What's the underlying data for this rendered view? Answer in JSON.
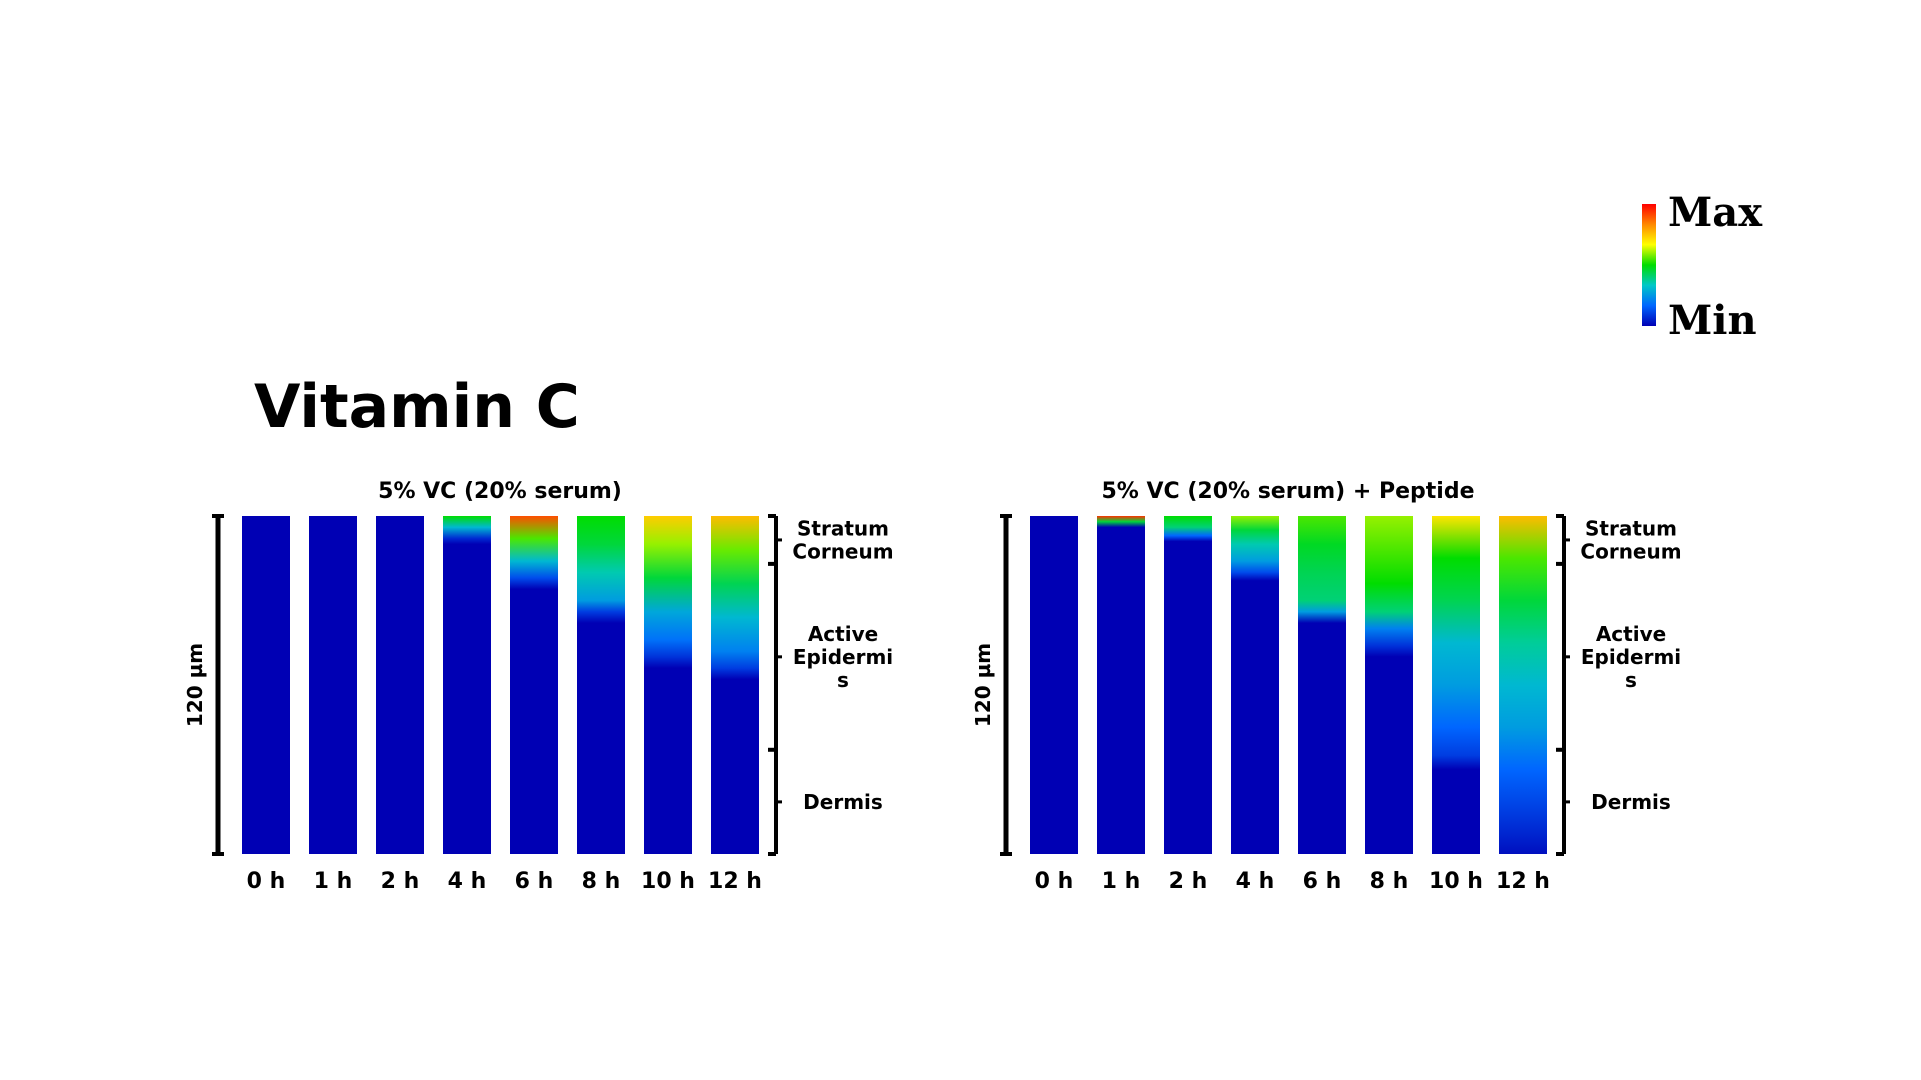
{
  "figure": {
    "title": "Vitamin C"
  },
  "legend": {
    "max_label": "Max",
    "min_label": "Min",
    "colors": [
      "#ff0000",
      "#ff8800",
      "#ffff00",
      "#00dd00",
      "#00c8c8",
      "#0066ff",
      "#0000b4"
    ]
  },
  "chart_data": [
    {
      "type": "heatmap",
      "title": "5% VC (20% serum)",
      "categories": [
        "0 h",
        "1 h",
        "2 h",
        "4 h",
        "6 h",
        "8 h",
        "10 h",
        "12 h"
      ],
      "ylabel": "120 µm",
      "layers": [
        "Stratum Corneum",
        "Active Epidermis",
        "Dermis"
      ],
      "layer_label_lines": [
        [
          "Stratum",
          "Corneum"
        ],
        [
          "Active",
          "Epidermi",
          "s"
        ],
        [
          "Dermis"
        ]
      ],
      "layer_boundaries_um": [
        17,
        83
      ],
      "ylim": [
        0,
        120
      ],
      "scale": "relative intensity 0 (Min) to 1 (Max)",
      "penetration_depth_um": [
        0,
        0,
        0,
        8,
        22,
        33,
        48,
        54
      ],
      "surface_intensity": [
        0,
        0,
        0,
        0.55,
        0.92,
        0.55,
        0.78,
        0.8
      ],
      "profiles": [
        [
          [
            0,
            0
          ]
        ],
        [
          [
            0,
            0
          ]
        ],
        [
          [
            0,
            0
          ]
        ],
        [
          [
            0,
            0.55
          ],
          [
            4,
            0.35
          ],
          [
            8,
            0.08
          ],
          [
            10,
            0
          ]
        ],
        [
          [
            0,
            0.92
          ],
          [
            8,
            0.6
          ],
          [
            16,
            0.35
          ],
          [
            22,
            0.15
          ],
          [
            26,
            0
          ]
        ],
        [
          [
            0,
            0.55
          ],
          [
            10,
            0.5
          ],
          [
            20,
            0.4
          ],
          [
            30,
            0.3
          ],
          [
            34,
            0.12
          ],
          [
            38,
            0
          ]
        ],
        [
          [
            0,
            0.78
          ],
          [
            10,
            0.65
          ],
          [
            22,
            0.5
          ],
          [
            34,
            0.32
          ],
          [
            44,
            0.22
          ],
          [
            50,
            0.1
          ],
          [
            54,
            0
          ]
        ],
        [
          [
            0,
            0.8
          ],
          [
            12,
            0.62
          ],
          [
            24,
            0.48
          ],
          [
            36,
            0.35
          ],
          [
            48,
            0.25
          ],
          [
            54,
            0.12
          ],
          [
            58,
            0
          ]
        ]
      ]
    },
    {
      "type": "heatmap",
      "title": "5% VC (20% serum) + Peptide",
      "categories": [
        "0 h",
        "1 h",
        "2 h",
        "4 h",
        "6 h",
        "8 h",
        "10 h",
        "12 h"
      ],
      "ylabel": "120 µm",
      "layers": [
        "Stratum Corneum",
        "Active Epidermis",
        "Dermis"
      ],
      "layer_label_lines": [
        [
          "Stratum",
          "Corneum"
        ],
        [
          "Active",
          "Epidermi",
          "s"
        ],
        [
          "Dermis"
        ]
      ],
      "layer_boundaries_um": [
        17,
        83
      ],
      "ylim": [
        0,
        120
      ],
      "scale": "relative intensity 0 (Min) to 1 (Max)",
      "penetration_depth_um": [
        0,
        3,
        8,
        18,
        35,
        45,
        82,
        110
      ],
      "surface_intensity": [
        0,
        0.95,
        0.55,
        0.65,
        0.6,
        0.65,
        0.75,
        0.8
      ],
      "profiles": [
        [
          [
            0,
            0
          ]
        ],
        [
          [
            0,
            0.95
          ],
          [
            2,
            0.5
          ],
          [
            4,
            0
          ]
        ],
        [
          [
            0,
            0.55
          ],
          [
            4,
            0.45
          ],
          [
            7,
            0.2
          ],
          [
            9,
            0
          ]
        ],
        [
          [
            0,
            0.65
          ],
          [
            5,
            0.5
          ],
          [
            10,
            0.4
          ],
          [
            16,
            0.3
          ],
          [
            20,
            0.15
          ],
          [
            23,
            0
          ]
        ],
        [
          [
            0,
            0.6
          ],
          [
            10,
            0.52
          ],
          [
            20,
            0.48
          ],
          [
            30,
            0.45
          ],
          [
            34,
            0.3
          ],
          [
            38,
            0
          ]
        ],
        [
          [
            0,
            0.65
          ],
          [
            12,
            0.6
          ],
          [
            24,
            0.55
          ],
          [
            34,
            0.45
          ],
          [
            40,
            0.25
          ],
          [
            46,
            0.1
          ],
          [
            50,
            0
          ]
        ],
        [
          [
            0,
            0.75
          ],
          [
            15,
            0.55
          ],
          [
            30,
            0.48
          ],
          [
            45,
            0.35
          ],
          [
            60,
            0.3
          ],
          [
            75,
            0.2
          ],
          [
            85,
            0.12
          ],
          [
            90,
            0
          ]
        ],
        [
          [
            0,
            0.8
          ],
          [
            15,
            0.6
          ],
          [
            30,
            0.5
          ],
          [
            45,
            0.42
          ],
          [
            60,
            0.35
          ],
          [
            75,
            0.3
          ],
          [
            90,
            0.2
          ],
          [
            105,
            0.12
          ],
          [
            115,
            0.06
          ],
          [
            120,
            0.03
          ]
        ]
      ]
    }
  ]
}
